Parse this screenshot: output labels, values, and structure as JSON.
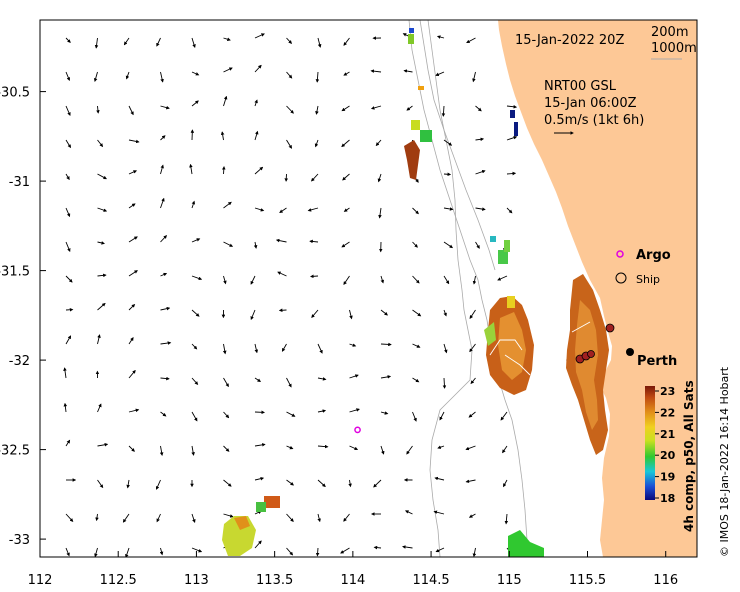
{
  "map": {
    "date_label": "15-Jan-2022 20Z",
    "isobath_labels": [
      "200m",
      "1000m"
    ],
    "current_source": "NRT00 GSL",
    "current_time": "15-Jan 06:00Z",
    "current_scale": "0.5m/s (1kt 6h)",
    "legend_argo": "Argo",
    "legend_ship": "Ship",
    "city_label": "Perth",
    "credit": "© IMOS 18-Jan-2022 16:14 Hobart",
    "colors": {
      "land": "#fdc896",
      "sea": "#ffffff",
      "frame": "#000000",
      "argo": "#e000e0"
    }
  },
  "axes": {
    "x_ticks": [
      "112",
      "112.5",
      "113",
      "113.5",
      "114",
      "114.5",
      "115",
      "115.5",
      "116"
    ],
    "y_ticks": [
      "-30.5",
      "-31",
      "-31.5",
      "-32",
      "-32.5",
      "-33"
    ],
    "x_values": [
      112,
      112.5,
      113,
      113.5,
      114,
      114.5,
      115,
      115.5,
      116
    ],
    "y_values": [
      -30.5,
      -31,
      -31.5,
      -32,
      -32.5,
      -33
    ],
    "xlim": [
      112,
      116.2
    ],
    "ylim": [
      -33.1,
      -30.1
    ]
  },
  "colorbar": {
    "title": "4h comp, p50, All Sats",
    "ticks": [
      "23",
      "22",
      "21",
      "20",
      "19",
      "18"
    ],
    "range": [
      18,
      23
    ]
  },
  "argo_float": {
    "lon": 114.03,
    "lat": -32.39
  }
}
